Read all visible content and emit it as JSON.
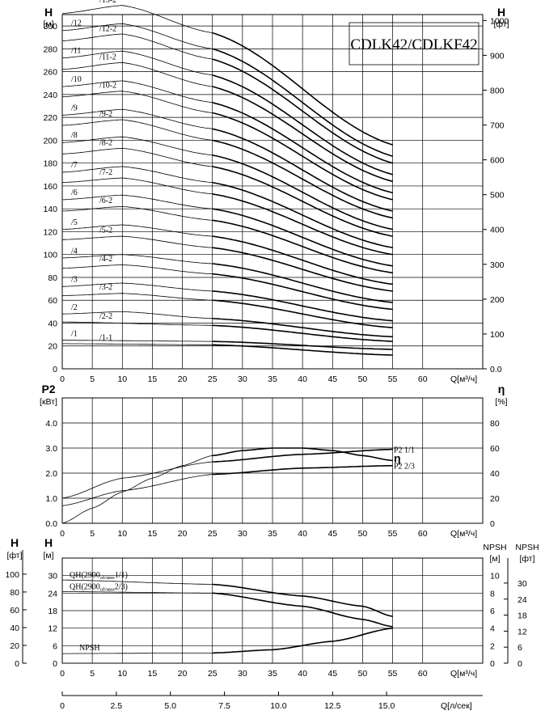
{
  "title": "CDLK42/CDLKF42",
  "chart_data": [
    {
      "type": "line",
      "name": "head",
      "x_ticks": [
        0,
        5,
        10,
        15,
        20,
        25,
        30,
        35,
        40,
        45,
        50,
        55,
        60
      ],
      "xlabel": "Q[м³/ч]",
      "ylabel_left": "H",
      "yunit_left": "[м]",
      "ylabel_right": "H",
      "yunit_right": "[фт]",
      "y_ticks_left": [
        0,
        20,
        40,
        60,
        80,
        100,
        120,
        140,
        160,
        180,
        200,
        220,
        240,
        260,
        280,
        300
      ],
      "y_ticks_right": [
        "0.0",
        "100",
        "200",
        "300",
        "400",
        "500",
        "600",
        "700",
        "800",
        "900",
        "1000"
      ],
      "xlim": [
        0,
        70
      ],
      "ylim": [
        0,
        310
      ],
      "series": [
        {
          "name": "/1-1",
          "x": [
            0,
            25,
            55
          ],
          "values": [
            22,
            21,
            12
          ]
        },
        {
          "name": "/1",
          "x": [
            0,
            25,
            55
          ],
          "values": [
            25,
            24,
            17
          ]
        },
        {
          "name": "/2-2",
          "x": [
            0,
            25,
            55
          ],
          "values": [
            41,
            38,
            24
          ]
        },
        {
          "name": "/2",
          "x": [
            0,
            10,
            25,
            55
          ],
          "values": [
            48,
            50,
            44,
            28
          ]
        },
        {
          "name": "/3-2",
          "x": [
            0,
            10,
            25,
            55
          ],
          "values": [
            64,
            66,
            60,
            36
          ]
        },
        {
          "name": "/3",
          "x": [
            0,
            10,
            25,
            55
          ],
          "values": [
            72,
            75,
            68,
            42
          ]
        },
        {
          "name": "/4-2",
          "x": [
            0,
            10,
            25,
            55
          ],
          "values": [
            88,
            91,
            83,
            52
          ]
        },
        {
          "name": "/4",
          "x": [
            0,
            10,
            25,
            55
          ],
          "values": [
            97,
            100,
            92,
            58
          ]
        },
        {
          "name": "/5-2",
          "x": [
            0,
            10,
            25,
            55
          ],
          "values": [
            113,
            116,
            106,
            68
          ]
        },
        {
          "name": "/5",
          "x": [
            0,
            10,
            25,
            55
          ],
          "values": [
            122,
            126,
            116,
            74
          ]
        },
        {
          "name": "/6-2",
          "x": [
            0,
            10,
            25,
            55
          ],
          "values": [
            138,
            142,
            130,
            84
          ]
        },
        {
          "name": "/6",
          "x": [
            0,
            10,
            25,
            55
          ],
          "values": [
            148,
            152,
            140,
            90
          ]
        },
        {
          "name": "/7-2",
          "x": [
            0,
            10,
            25,
            55
          ],
          "values": [
            163,
            167,
            153,
            100
          ]
        },
        {
          "name": "/7",
          "x": [
            0,
            10,
            25,
            55
          ],
          "values": [
            172,
            177,
            163,
            106
          ]
        },
        {
          "name": "/8-2",
          "x": [
            0,
            10,
            25,
            55
          ],
          "values": [
            188,
            193,
            177,
            116
          ]
        },
        {
          "name": "/8",
          "x": [
            0,
            10,
            25,
            55
          ],
          "values": [
            198,
            203,
            187,
            122
          ]
        },
        {
          "name": "/9-2",
          "x": [
            0,
            10,
            25,
            55
          ],
          "values": [
            213,
            218,
            200,
            132
          ]
        },
        {
          "name": "/9",
          "x": [
            0,
            10,
            25,
            55
          ],
          "values": [
            222,
            227,
            210,
            138
          ]
        },
        {
          "name": "/10-2",
          "x": [
            0,
            10,
            25,
            55
          ],
          "values": [
            238,
            243,
            224,
            148
          ]
        },
        {
          "name": "/10",
          "x": [
            0,
            10,
            25,
            55
          ],
          "values": [
            247,
            252,
            233,
            154
          ]
        },
        {
          "name": "/11-2",
          "x": [
            0,
            10,
            25,
            55
          ],
          "values": [
            262,
            268,
            247,
            164
          ]
        },
        {
          "name": "/11",
          "x": [
            0,
            10,
            25,
            55
          ],
          "values": [
            272,
            278,
            257,
            170
          ]
        },
        {
          "name": "/12-2",
          "x": [
            0,
            10,
            25,
            55
          ],
          "values": [
            287,
            293,
            271,
            180
          ]
        },
        {
          "name": "/12",
          "x": [
            0,
            10,
            25,
            55
          ],
          "values": [
            296,
            302,
            280,
            186
          ]
        },
        {
          "name": "/13-2",
          "x": [
            0,
            10,
            25,
            55
          ],
          "values": [
            311,
            318,
            294,
            196
          ]
        }
      ]
    },
    {
      "type": "line",
      "name": "power-efficiency",
      "x_ticks": [
        0,
        5,
        10,
        15,
        20,
        25,
        30,
        35,
        40,
        45,
        50,
        55,
        60
      ],
      "xlabel": "Q[м³/ч]",
      "ylabel_left": "P2",
      "yunit_left": "[кВт]",
      "ylabel_right": "η",
      "yunit_right": "[%]",
      "y_ticks_left": [
        "0.0",
        "1.0",
        "2.0",
        "3.0",
        "4.0"
      ],
      "y_ticks_right": [
        "0",
        "20",
        "40",
        "60",
        "80"
      ],
      "xlim": [
        0,
        70
      ],
      "ylim": [
        0,
        5
      ],
      "series": [
        {
          "name": "η",
          "x": [
            0,
            5,
            10,
            15,
            20,
            25,
            30,
            35,
            40,
            45,
            50,
            55
          ],
          "values": [
            0,
            12,
            25,
            36,
            46,
            54,
            58,
            60,
            60,
            58,
            54,
            50
          ],
          "scale": "right"
        },
        {
          "name": "P2  1/1",
          "x": [
            0,
            10,
            25,
            40,
            55
          ],
          "values": [
            1.0,
            1.8,
            2.45,
            2.75,
            2.95
          ],
          "scale": "left"
        },
        {
          "name": "P2  2/3",
          "x": [
            0,
            10,
            25,
            40,
            55
          ],
          "values": [
            0.7,
            1.3,
            1.95,
            2.2,
            2.3
          ],
          "scale": "left"
        }
      ]
    },
    {
      "type": "line",
      "name": "composite",
      "x_ticks": [
        0,
        5,
        10,
        15,
        20,
        25,
        30,
        35,
        40,
        45,
        50,
        55,
        60
      ],
      "xlabel": "Q[м³/ч]",
      "x2_ticks": [
        "0",
        "2.5",
        "5.0",
        "7.5",
        "10.0",
        "12.5",
        "15.0"
      ],
      "x2label": "Q[л/сек]",
      "ylabel_left1": "H",
      "yunit_left1": "[фт]",
      "y_ticks_left1": [
        "0",
        "20",
        "40",
        "60",
        "80",
        "100"
      ],
      "ylabel_left2": "H",
      "yunit_left2": "[м]",
      "y_ticks_left2": [
        "0",
        "6",
        "12",
        "18",
        "24",
        "30"
      ],
      "ylabel_right1": "NPSH",
      "yunit_right1": "[м]",
      "y_ticks_right1": [
        "0",
        "2",
        "4",
        "6",
        "8",
        "10"
      ],
      "ylabel_right2": "NPSH",
      "yunit_right2": "[фт]",
      "y_ticks_right2": [
        "0",
        "6",
        "12",
        "18",
        "24",
        "30"
      ],
      "xlim": [
        0,
        70
      ],
      "ylim": [
        0,
        36
      ],
      "series": [
        {
          "name": "QH(2900об/мин1/1)",
          "x": [
            0,
            25,
            40,
            50,
            55
          ],
          "values": [
            28.5,
            27,
            23,
            19.5,
            16
          ]
        },
        {
          "name": "QH(2900об/мин2/3)",
          "x": [
            0,
            25,
            40,
            50,
            55
          ],
          "values": [
            24.5,
            24,
            19.5,
            15,
            12.5
          ]
        },
        {
          "name": "NPSH",
          "x": [
            0,
            25,
            35,
            45,
            55
          ],
          "values": [
            3.3,
            3.5,
            4.6,
            7.5,
            12
          ]
        }
      ]
    }
  ],
  "labels": {
    "qh1_pre": "QH(2900",
    "qh1_sub": "об/мин",
    "qh1_post": "1/1)",
    "qh2_pre": "QH(2900",
    "qh2_sub": "об/мин",
    "qh2_post": "2/3)",
    "npsh": "NPSH",
    "eta": "η",
    "p2_11": "P2  1/1",
    "p2_23": "P2  2/3"
  }
}
